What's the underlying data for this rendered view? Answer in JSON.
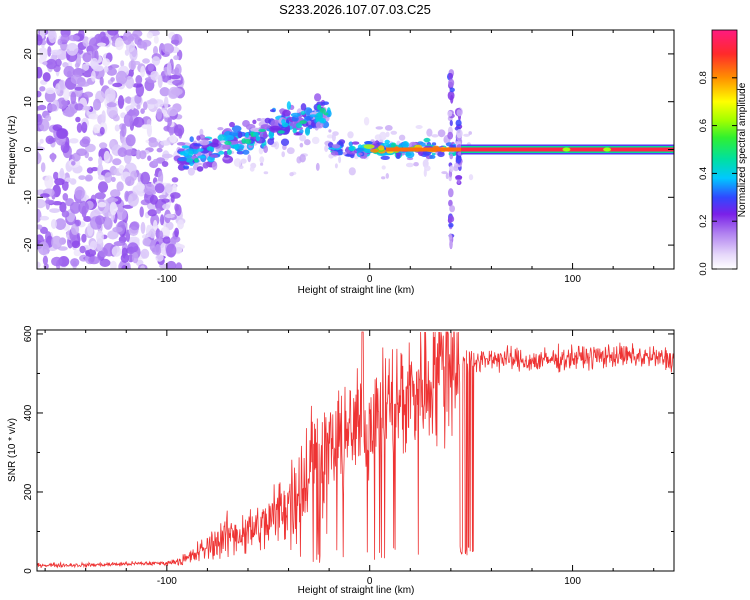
{
  "title": "S233.2026.107.07.03.C25",
  "chart_data": [
    {
      "type": "heatmap",
      "title": "S233.2026.107.07.03.C25",
      "xlabel": "Height of straight line (km)",
      "ylabel": "Frequency (Hz)",
      "xlim": [
        -164,
        150
      ],
      "ylim": [
        -25,
        25
      ],
      "xticks": [
        -100,
        0,
        100
      ],
      "yticks": [
        -20,
        -10,
        0,
        10,
        20
      ],
      "colorbar": {
        "label": "Normalized spectral amplitude",
        "range": [
          0.0,
          1.0
        ],
        "ticks": [
          "0.0",
          "0.2",
          "0.4",
          "0.6",
          "0.8"
        ],
        "colors": [
          "#ffffff",
          "#c8a8f0",
          "#8a2be2",
          "#3050ff",
          "#00d8ff",
          "#00e070",
          "#66ff00",
          "#ffff00",
          "#ff8800",
          "#ff2040",
          "#ff1080"
        ]
      },
      "features": [
        {
          "name": "noise",
          "x_range": [
            -164,
            -93
          ],
          "freq_range": [
            -25,
            25
          ],
          "amplitude": 0.2
        },
        {
          "name": "signal-onset",
          "x_range": [
            -93,
            -20
          ],
          "freq_center_start": -2,
          "freq_center_end": 8,
          "amplitude": 0.35
        },
        {
          "name": "carrier",
          "x_range": [
            45,
            150
          ],
          "freq": 0,
          "amplitude": 0.95
        },
        {
          "name": "spike",
          "x": 40,
          "freq_range": [
            -20,
            16
          ]
        },
        {
          "name": "spike",
          "x": 44,
          "freq_range": [
            -8,
            8
          ]
        }
      ]
    },
    {
      "type": "line",
      "xlabel": "Height of straight line (km)",
      "ylabel": "SNR (10 * v/v)",
      "xlim": [
        -164,
        150
      ],
      "ylim": [
        0,
        610
      ],
      "xticks": [
        -100,
        0,
        100
      ],
      "yticks": [
        0,
        200,
        400,
        600
      ],
      "series": [
        {
          "name": "SNR",
          "color": "#ee3333",
          "x": [
            -164,
            -140,
            -120,
            -100,
            -90,
            -80,
            -70,
            -60,
            -50,
            -40,
            -30,
            -20,
            -10,
            0,
            10,
            20,
            30,
            40,
            44,
            46,
            50,
            60,
            80,
            100,
            120,
            140,
            150
          ],
          "y": [
            15,
            15,
            18,
            20,
            30,
            60,
            90,
            100,
            120,
            180,
            250,
            300,
            350,
            380,
            420,
            450,
            500,
            540,
            560,
            50,
            520,
            540,
            530,
            540,
            545,
            540,
            535
          ]
        }
      ]
    }
  ]
}
